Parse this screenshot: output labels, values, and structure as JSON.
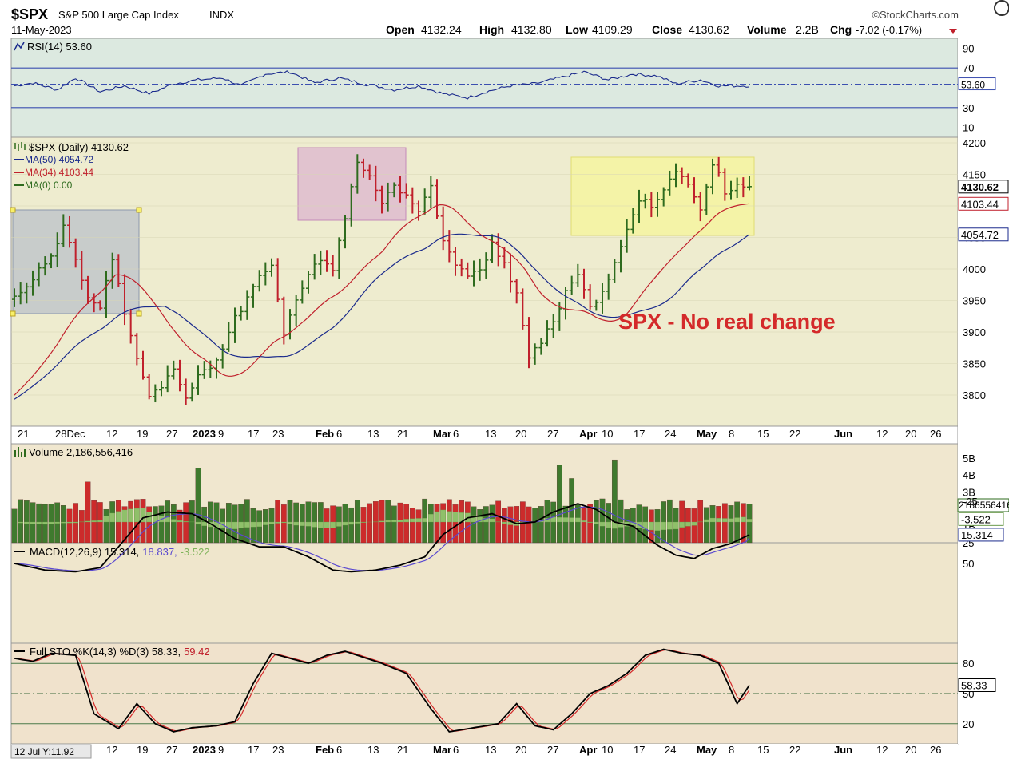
{
  "header": {
    "symbol": "$SPX",
    "name": "S&P 500 Large Cap Index",
    "exchange": "INDX",
    "date": "11-May-2023",
    "brand": "©StockCharts.com",
    "quote": {
      "open_label": "Open",
      "open": "4132.24",
      "high_label": "High",
      "high": "4132.80",
      "low_label": "Low",
      "low": "4109.29",
      "close_label": "Close",
      "close": "4130.62",
      "volume_label": "Volume",
      "volume": "2.2B",
      "chg_label": "Chg",
      "chg": "-7.02 (-0.17%)"
    }
  },
  "colors": {
    "up": "#2e6b1e",
    "down": "#c0202c",
    "ma50": "#1a2a8c",
    "ma34": "#c0202c",
    "rsi_bg": "#dce9e0",
    "price_bg": "#eeeccf",
    "volume_bg": "#f0e7cf",
    "macd_bg": "#efe6cc",
    "sto_bg": "#f0e2cc",
    "annotation": "#d42a2a",
    "box_gray": "#a9b3c9",
    "box_pink": "#d9a8cf",
    "box_yellow": "#f6f59a"
  },
  "time_axis": {
    "labels": [
      "21",
      "28Dec",
      "12",
      "19",
      "27",
      "2023",
      "9",
      "17",
      "23",
      "Feb",
      "6",
      "13",
      "21",
      "Mar",
      "6",
      "13",
      "20",
      "27",
      "Apr",
      "10",
      "17",
      "24",
      "May",
      "8",
      "15",
      "22",
      "Jun",
      "12",
      "20",
      "26"
    ],
    "bold": [
      "Dec",
      "2023",
      "Feb",
      "Mar",
      "Apr",
      "May",
      "Jun"
    ],
    "bottom_first": "12 Jul Y:11.92"
  },
  "chart_data": [
    {
      "id": "rsi",
      "type": "line",
      "title": "RSI(14) 53.60",
      "ylim": [
        0,
        100
      ],
      "ticks": [
        "90",
        "70",
        "30",
        "10"
      ],
      "reference_lines": [
        70,
        30
      ],
      "last_value_label": "53.60",
      "start": 51,
      "anchors": [
        [
          0,
          52
        ],
        [
          6,
          55
        ],
        [
          14,
          48
        ],
        [
          20,
          60
        ],
        [
          28,
          46
        ],
        [
          36,
          52
        ],
        [
          44,
          44
        ],
        [
          52,
          54
        ],
        [
          60,
          58
        ],
        [
          68,
          60
        ],
        [
          74,
          52
        ],
        [
          82,
          64
        ],
        [
          90,
          66
        ],
        [
          98,
          55
        ],
        [
          106,
          60
        ],
        [
          114,
          54
        ],
        [
          124,
          48
        ],
        [
          132,
          52
        ],
        [
          140,
          44
        ],
        [
          148,
          40
        ],
        [
          154,
          46
        ],
        [
          162,
          52
        ],
        [
          170,
          54
        ],
        [
          178,
          60
        ],
        [
          186,
          66
        ],
        [
          194,
          58
        ],
        [
          202,
          64
        ],
        [
          210,
          62
        ],
        [
          216,
          54
        ],
        [
          224,
          58
        ],
        [
          230,
          52
        ]
      ]
    },
    {
      "id": "price",
      "type": "ohlc-bar",
      "title": "$SPX (Daily) 4130.62",
      "legend": [
        "MA(50) 4054.72",
        "MA(34) 4103.44",
        "MA(0) 0.00"
      ],
      "ylim": [
        3760,
        4210
      ],
      "ticks": [
        "4200",
        "4150",
        "4100",
        "4050",
        "4000",
        "3950",
        "3900",
        "3850",
        "3800"
      ],
      "last_value_labels": [
        "4130.62",
        "4103.44",
        "4054.72"
      ],
      "annotation": "SPX - No real change",
      "close_anchors": [
        [
          0,
          3955
        ],
        [
          4,
          3975
        ],
        [
          8,
          3998
        ],
        [
          12,
          4015
        ],
        [
          16,
          4070
        ],
        [
          20,
          4020
        ],
        [
          24,
          3955
        ],
        [
          28,
          3935
        ],
        [
          32,
          4020
        ],
        [
          36,
          3925
        ],
        [
          40,
          3855
        ],
        [
          44,
          3800
        ],
        [
          48,
          3810
        ],
        [
          52,
          3845
        ],
        [
          56,
          3795
        ],
        [
          60,
          3830
        ],
        [
          64,
          3840
        ],
        [
          68,
          3875
        ],
        [
          72,
          3925
        ],
        [
          76,
          3950
        ],
        [
          80,
          3990
        ],
        [
          84,
          4000
        ],
        [
          88,
          3895
        ],
        [
          92,
          3950
        ],
        [
          96,
          3990
        ],
        [
          100,
          4015
        ],
        [
          104,
          4000
        ],
        [
          108,
          4085
        ],
        [
          112,
          4165
        ],
        [
          116,
          4150
        ],
        [
          120,
          4110
        ],
        [
          124,
          4130
        ],
        [
          128,
          4120
        ],
        [
          132,
          4095
        ],
        [
          136,
          4130
        ],
        [
          140,
          4040
        ],
        [
          144,
          4010
        ],
        [
          148,
          3990
        ],
        [
          152,
          3995
        ],
        [
          156,
          4040
        ],
        [
          160,
          4010
        ],
        [
          164,
          3960
        ],
        [
          168,
          3860
        ],
        [
          172,
          3880
        ],
        [
          176,
          3920
        ],
        [
          180,
          3960
        ],
        [
          184,
          3990
        ],
        [
          188,
          3935
        ],
        [
          192,
          3970
        ],
        [
          196,
          4005
        ],
        [
          200,
          4060
        ],
        [
          204,
          4110
        ],
        [
          208,
          4100
        ],
        [
          212,
          4130
        ],
        [
          216,
          4155
        ],
        [
          220,
          4135
        ],
        [
          224,
          4090
        ],
        [
          228,
          4170
        ],
        [
          232,
          4125
        ],
        [
          236,
          4135
        ],
        [
          240,
          4130.62
        ]
      ],
      "ma50": {
        "start": 3790,
        "end": 4054.72
      },
      "ma34": {
        "start": 3795,
        "end": 4103.44
      }
    },
    {
      "id": "volume",
      "type": "bar",
      "title": "Volume 2,186,556,416",
      "ylim": [
        0,
        6
      ],
      "ticks": [
        "5B",
        "4B",
        "3B",
        "1B"
      ],
      "last_value_label": "2186556416"
    },
    {
      "id": "macd",
      "type": "line",
      "title": "MACD(12,26,9) 15.314, 18.837, -3.522",
      "title_parts": [
        "MACD(12,26,9) 15.314,",
        "18.837,",
        "-3.522"
      ],
      "ylim": [
        -40,
        75
      ],
      "ticks": [
        "50",
        "25",
        "-25"
      ],
      "last_value_labels": [
        "15.314",
        "-3.522"
      ],
      "anchors": [
        [
          0,
          50
        ],
        [
          10,
          58
        ],
        [
          20,
          60
        ],
        [
          28,
          55
        ],
        [
          34,
          30
        ],
        [
          42,
          -5
        ],
        [
          50,
          -12
        ],
        [
          58,
          -10
        ],
        [
          64,
          2
        ],
        [
          72,
          20
        ],
        [
          80,
          30
        ],
        [
          88,
          30
        ],
        [
          96,
          42
        ],
        [
          104,
          58
        ],
        [
          110,
          60
        ],
        [
          118,
          58
        ],
        [
          126,
          52
        ],
        [
          134,
          42
        ],
        [
          140,
          15
        ],
        [
          148,
          -5
        ],
        [
          156,
          -10
        ],
        [
          164,
          2
        ],
        [
          170,
          0
        ],
        [
          176,
          -12
        ],
        [
          184,
          -22
        ],
        [
          190,
          -15
        ],
        [
          196,
          0
        ],
        [
          202,
          5
        ],
        [
          210,
          28
        ],
        [
          216,
          40
        ],
        [
          222,
          44
        ],
        [
          228,
          32
        ],
        [
          234,
          26
        ],
        [
          240,
          15.314
        ]
      ]
    },
    {
      "id": "sto",
      "type": "line",
      "title": "Full STO %K(14,3) %D(3) 58.33, 59.42",
      "title_parts": [
        "Full STO %K(14,3) %D(3) 58.33,",
        "59.42"
      ],
      "ylim": [
        0,
        100
      ],
      "ticks": [
        "80",
        "50",
        "20"
      ],
      "reference_lines": [
        80,
        50,
        20
      ],
      "last_value_label": "58.33",
      "anchors": [
        [
          0,
          85
        ],
        [
          6,
          82
        ],
        [
          12,
          90
        ],
        [
          20,
          88
        ],
        [
          26,
          30
        ],
        [
          34,
          15
        ],
        [
          40,
          40
        ],
        [
          46,
          20
        ],
        [
          52,
          12
        ],
        [
          58,
          16
        ],
        [
          66,
          18
        ],
        [
          72,
          22
        ],
        [
          78,
          60
        ],
        [
          84,
          90
        ],
        [
          90,
          85
        ],
        [
          96,
          80
        ],
        [
          102,
          88
        ],
        [
          108,
          92
        ],
        [
          114,
          86
        ],
        [
          120,
          80
        ],
        [
          128,
          70
        ],
        [
          136,
          35
        ],
        [
          142,
          12
        ],
        [
          150,
          16
        ],
        [
          158,
          20
        ],
        [
          164,
          40
        ],
        [
          170,
          18
        ],
        [
          176,
          14
        ],
        [
          182,
          30
        ],
        [
          188,
          50
        ],
        [
          194,
          58
        ],
        [
          200,
          70
        ],
        [
          206,
          88
        ],
        [
          212,
          94
        ],
        [
          218,
          90
        ],
        [
          224,
          88
        ],
        [
          230,
          80
        ],
        [
          236,
          40
        ],
        [
          240,
          58.33
        ]
      ]
    }
  ]
}
